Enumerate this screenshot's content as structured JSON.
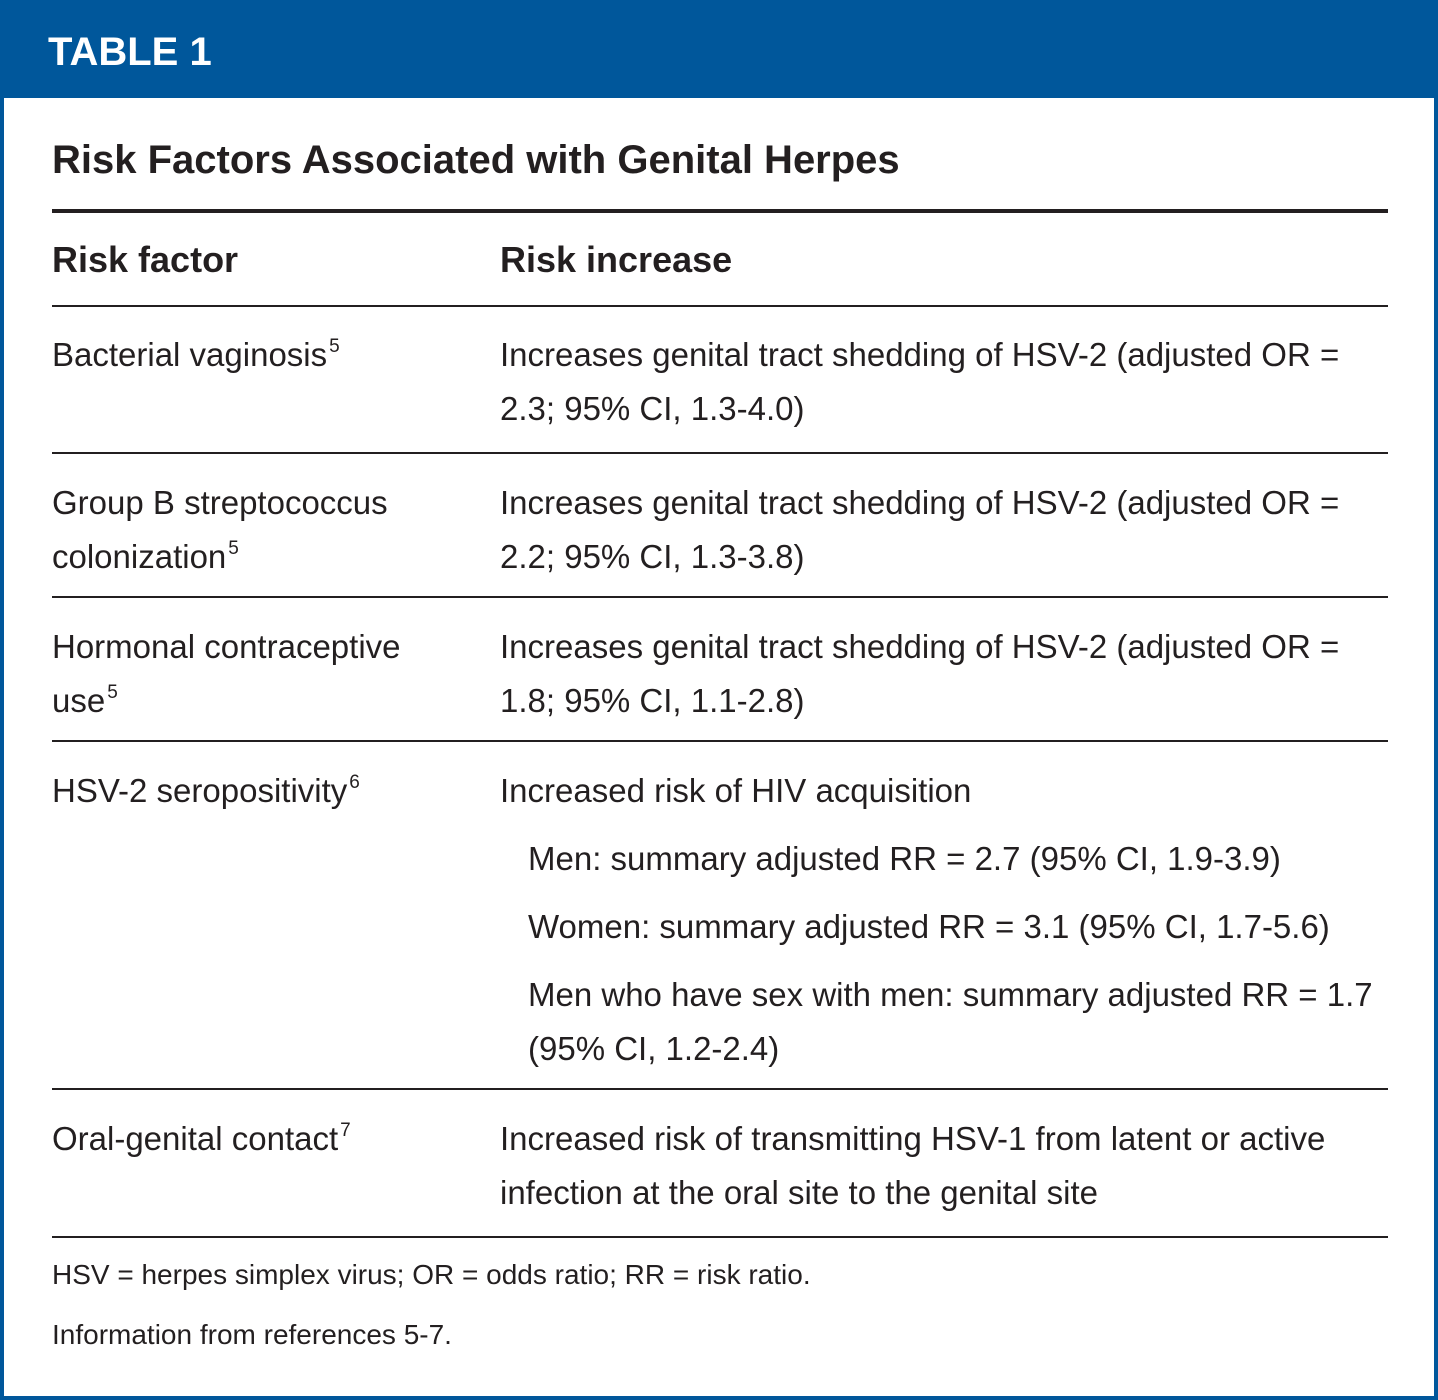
{
  "header": {
    "label": "TABLE 1"
  },
  "title": "Risk Factors Associated with Genital Herpes",
  "table": {
    "columns": [
      "Risk factor",
      "Risk increase"
    ],
    "rows": [
      {
        "factor": "Bacterial vaginosis",
        "ref": "5",
        "increase": "Increases genital tract shedding of HSV-2 (adjusted OR = 2.3; 95% CI, 1.3-4.0)"
      },
      {
        "factor": "Group B streptococcus colonization",
        "ref": "5",
        "increase": "Increases genital tract shedding of HSV-2 (adjusted OR = 2.2; 95% CI, 1.3-3.8)"
      },
      {
        "factor": "Hormonal contraceptive use",
        "ref": "5",
        "increase": "Increases genital tract shedding of HSV-2 (adjusted OR = 1.8; 95% CI, 1.1-2.8)"
      },
      {
        "factor": "HSV-2 seropositivity",
        "ref": "6",
        "increase": "Increased risk of HIV acquisition",
        "details": [
          "Men: summary adjusted RR = 2.7 (95% CI, 1.9-3.9)",
          "Women: summary adjusted RR = 3.1 (95% CI, 1.7-5.6)",
          "Men who have sex with men: summary adjusted RR = 1.7 (95% CI, 1.2-2.4)"
        ]
      },
      {
        "factor": "Oral-genital contact",
        "ref": "7",
        "increase": "Increased risk of transmitting HSV-1 from latent or active infection at the oral site to the genital site"
      }
    ]
  },
  "footnotes": [
    "HSV = herpes simplex virus; OR = odds ratio; RR = risk ratio.",
    "Information from references 5-7."
  ]
}
